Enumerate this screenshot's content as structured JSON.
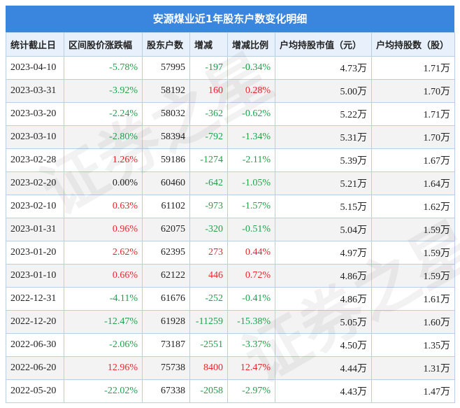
{
  "title": "安源煤业近1年股东户数变化明细",
  "colors": {
    "header_bg": "#3a86de",
    "up": "#e8262d",
    "down": "#22a14a",
    "column_header_bg": "#e8f1fb"
  },
  "columns": [
    "统计截止日",
    "区间股价涨跌幅",
    "股东户数",
    "增减",
    "增减比例",
    "户均持股市值（元）",
    "户均持股数（股）"
  ],
  "rows": [
    {
      "date": "2023-04-10",
      "price_change": "-5.78%",
      "holders": "57995",
      "change": "-197",
      "change_ratio": "-0.34%",
      "avg_value": "4.73万",
      "avg_shares": "1.71万",
      "pc_dir": "down",
      "ch_dir": "down"
    },
    {
      "date": "2023-03-31",
      "price_change": "-3.92%",
      "holders": "58192",
      "change": "160",
      "change_ratio": "0.28%",
      "avg_value": "5.00万",
      "avg_shares": "1.70万",
      "pc_dir": "down",
      "ch_dir": "up"
    },
    {
      "date": "2023-03-20",
      "price_change": "-2.24%",
      "holders": "58032",
      "change": "-362",
      "change_ratio": "-0.62%",
      "avg_value": "5.22万",
      "avg_shares": "1.71万",
      "pc_dir": "down",
      "ch_dir": "down"
    },
    {
      "date": "2023-03-10",
      "price_change": "-2.80%",
      "holders": "58394",
      "change": "-792",
      "change_ratio": "-1.34%",
      "avg_value": "5.31万",
      "avg_shares": "1.70万",
      "pc_dir": "down",
      "ch_dir": "down"
    },
    {
      "date": "2023-02-28",
      "price_change": "1.26%",
      "holders": "59186",
      "change": "-1274",
      "change_ratio": "-2.11%",
      "avg_value": "5.39万",
      "avg_shares": "1.67万",
      "pc_dir": "up",
      "ch_dir": "down"
    },
    {
      "date": "2023-02-20",
      "price_change": "0.00%",
      "holders": "60460",
      "change": "-642",
      "change_ratio": "-1.05%",
      "avg_value": "5.21万",
      "avg_shares": "1.64万",
      "pc_dir": "flat",
      "ch_dir": "down"
    },
    {
      "date": "2023-02-10",
      "price_change": "0.63%",
      "holders": "61102",
      "change": "-973",
      "change_ratio": "-1.57%",
      "avg_value": "5.15万",
      "avg_shares": "1.62万",
      "pc_dir": "up",
      "ch_dir": "down"
    },
    {
      "date": "2023-01-31",
      "price_change": "0.96%",
      "holders": "62075",
      "change": "-320",
      "change_ratio": "-0.51%",
      "avg_value": "5.04万",
      "avg_shares": "1.59万",
      "pc_dir": "up",
      "ch_dir": "down"
    },
    {
      "date": "2023-01-20",
      "price_change": "2.62%",
      "holders": "62395",
      "change": "273",
      "change_ratio": "0.44%",
      "avg_value": "4.97万",
      "avg_shares": "1.59万",
      "pc_dir": "up",
      "ch_dir": "up"
    },
    {
      "date": "2023-01-10",
      "price_change": "0.66%",
      "holders": "62122",
      "change": "446",
      "change_ratio": "0.72%",
      "avg_value": "4.86万",
      "avg_shares": "1.59万",
      "pc_dir": "up",
      "ch_dir": "up"
    },
    {
      "date": "2022-12-31",
      "price_change": "-4.11%",
      "holders": "61676",
      "change": "-252",
      "change_ratio": "-0.41%",
      "avg_value": "4.86万",
      "avg_shares": "1.61万",
      "pc_dir": "down",
      "ch_dir": "down"
    },
    {
      "date": "2022-12-20",
      "price_change": "-12.47%",
      "holders": "61928",
      "change": "-11259",
      "change_ratio": "-15.38%",
      "avg_value": "5.05万",
      "avg_shares": "1.60万",
      "pc_dir": "down",
      "ch_dir": "down"
    },
    {
      "date": "2022-06-30",
      "price_change": "-2.06%",
      "holders": "73187",
      "change": "-2551",
      "change_ratio": "-3.37%",
      "avg_value": "4.50万",
      "avg_shares": "1.35万",
      "pc_dir": "down",
      "ch_dir": "down"
    },
    {
      "date": "2022-06-20",
      "price_change": "12.96%",
      "holders": "75738",
      "change": "8400",
      "change_ratio": "12.47%",
      "avg_value": "4.44万",
      "avg_shares": "1.31万",
      "pc_dir": "up",
      "ch_dir": "up"
    },
    {
      "date": "2022-05-20",
      "price_change": "-22.02%",
      "holders": "67338",
      "change": "-2058",
      "change_ratio": "-2.97%",
      "avg_value": "4.43万",
      "avg_shares": "1.47万",
      "pc_dir": "down",
      "ch_dir": "down"
    }
  ],
  "watermark": "证券之星"
}
